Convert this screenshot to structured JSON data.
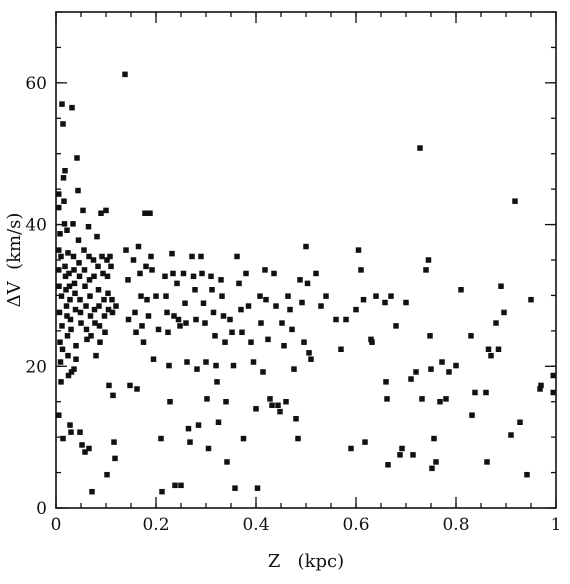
{
  "chart_data": {
    "type": "scatter",
    "title": "",
    "xlabel": "Z   (kpc)",
    "ylabel": "ΔV  (km/s)",
    "xlim": [
      0,
      1.0
    ],
    "ylim": [
      0,
      70
    ],
    "x_ticks": [
      {
        "value": 0,
        "label": "0"
      },
      {
        "value": 0.2,
        "label": "0.2"
      },
      {
        "value": 0.4,
        "label": "0.4"
      },
      {
        "value": 0.6,
        "label": "0.6"
      },
      {
        "value": 0.8,
        "label": "0.8"
      },
      {
        "value": 1.0,
        "label": "1"
      }
    ],
    "y_ticks": [
      {
        "value": 0,
        "label": "0"
      },
      {
        "value": 20,
        "label": "20"
      },
      {
        "value": 40,
        "label": "40"
      },
      {
        "value": 60,
        "label": "60"
      }
    ],
    "x_minor_step": 0.05,
    "y_minor_step": 5,
    "grid": false,
    "legend": "none",
    "marker": "square",
    "color": "#111111",
    "points": [
      [
        0.002,
        44.3
      ],
      [
        0.004,
        42.4
      ],
      [
        0.004,
        36.4
      ],
      [
        0.005,
        33.6
      ],
      [
        0.006,
        31.3
      ],
      [
        0.007,
        27.6
      ],
      [
        0.008,
        23.4
      ],
      [
        0.009,
        20.6
      ],
      [
        0.01,
        17.8
      ],
      [
        0.005,
        13.1
      ],
      [
        0.008,
        38.7
      ],
      [
        0.01,
        35.5
      ],
      [
        0.011,
        29.9
      ],
      [
        0.012,
        25.7
      ],
      [
        0.013,
        22.4
      ],
      [
        0.014,
        9.8
      ],
      [
        0.012,
        57.0
      ],
      [
        0.014,
        54.2
      ],
      [
        0.015,
        46.6
      ],
      [
        0.016,
        43.3
      ],
      [
        0.017,
        40.1
      ],
      [
        0.018,
        34.1
      ],
      [
        0.019,
        32.7
      ],
      [
        0.02,
        30.8
      ],
      [
        0.021,
        28.5
      ],
      [
        0.022,
        27.1
      ],
      [
        0.023,
        24.3
      ],
      [
        0.024,
        21.5
      ],
      [
        0.025,
        18.7
      ],
      [
        0.018,
        47.6
      ],
      [
        0.022,
        39.2
      ],
      [
        0.024,
        36.0
      ],
      [
        0.026,
        33.1
      ],
      [
        0.027,
        31.3
      ],
      [
        0.028,
        29.4
      ],
      [
        0.029,
        26.6
      ],
      [
        0.03,
        25.2
      ],
      [
        0.031,
        19.2
      ],
      [
        0.028,
        11.7
      ],
      [
        0.03,
        10.7
      ],
      [
        0.032,
        56.5
      ],
      [
        0.034,
        40.1
      ],
      [
        0.035,
        35.5
      ],
      [
        0.036,
        33.6
      ],
      [
        0.037,
        31.7
      ],
      [
        0.038,
        30.3
      ],
      [
        0.039,
        28.0
      ],
      [
        0.04,
        22.9
      ],
      [
        0.04,
        21.0
      ],
      [
        0.036,
        19.6
      ],
      [
        0.042,
        49.4
      ],
      [
        0.044,
        44.8
      ],
      [
        0.045,
        37.8
      ],
      [
        0.046,
        34.6
      ],
      [
        0.047,
        32.7
      ],
      [
        0.048,
        29.4
      ],
      [
        0.049,
        27.6
      ],
      [
        0.05,
        26.1
      ],
      [
        0.048,
        10.7
      ],
      [
        0.052,
        8.9
      ],
      [
        0.054,
        42.0
      ],
      [
        0.056,
        36.4
      ],
      [
        0.057,
        33.6
      ],
      [
        0.058,
        31.3
      ],
      [
        0.06,
        28.5
      ],
      [
        0.061,
        25.2
      ],
      [
        0.062,
        23.8
      ],
      [
        0.058,
        7.9
      ],
      [
        0.065,
        39.7
      ],
      [
        0.066,
        35.5
      ],
      [
        0.067,
        32.2
      ],
      [
        0.068,
        29.9
      ],
      [
        0.069,
        27.1
      ],
      [
        0.07,
        24.3
      ],
      [
        0.066,
        8.4
      ],
      [
        0.072,
        2.3
      ],
      [
        0.075,
        35.0
      ],
      [
        0.076,
        32.7
      ],
      [
        0.077,
        28.0
      ],
      [
        0.078,
        26.1
      ],
      [
        0.08,
        21.5
      ],
      [
        0.082,
        38.3
      ],
      [
        0.084,
        34.1
      ],
      [
        0.085,
        30.8
      ],
      [
        0.086,
        28.5
      ],
      [
        0.087,
        25.7
      ],
      [
        0.088,
        23.4
      ],
      [
        0.09,
        41.6
      ],
      [
        0.092,
        35.5
      ],
      [
        0.094,
        33.1
      ],
      [
        0.096,
        29.4
      ],
      [
        0.097,
        27.1
      ],
      [
        0.098,
        24.8
      ],
      [
        0.1,
        42.0
      ],
      [
        0.102,
        35.0
      ],
      [
        0.103,
        32.7
      ],
      [
        0.104,
        30.3
      ],
      [
        0.105,
        28.0
      ],
      [
        0.106,
        17.3
      ],
      [
        0.102,
        4.7
      ],
      [
        0.108,
        35.5
      ],
      [
        0.11,
        34.1
      ],
      [
        0.112,
        29.4
      ],
      [
        0.113,
        27.6
      ],
      [
        0.114,
        15.9
      ],
      [
        0.116,
        9.3
      ],
      [
        0.118,
        7.0
      ],
      [
        0.12,
        28.5
      ],
      [
        0.138,
        61.2
      ],
      [
        0.14,
        36.4
      ],
      [
        0.144,
        32.2
      ],
      [
        0.145,
        26.6
      ],
      [
        0.148,
        17.3
      ],
      [
        0.155,
        35.0
      ],
      [
        0.158,
        27.6
      ],
      [
        0.16,
        24.8
      ],
      [
        0.162,
        16.8
      ],
      [
        0.165,
        36.9
      ],
      [
        0.168,
        33.1
      ],
      [
        0.17,
        29.9
      ],
      [
        0.172,
        25.7
      ],
      [
        0.175,
        23.4
      ],
      [
        0.178,
        41.6
      ],
      [
        0.18,
        34.1
      ],
      [
        0.182,
        29.4
      ],
      [
        0.185,
        27.1
      ],
      [
        0.188,
        41.6
      ],
      [
        0.19,
        35.5
      ],
      [
        0.192,
        33.6
      ],
      [
        0.195,
        21.0
      ],
      [
        0.2,
        29.9
      ],
      [
        0.205,
        25.2
      ],
      [
        0.21,
        9.8
      ],
      [
        0.212,
        2.3
      ],
      [
        0.218,
        32.7
      ],
      [
        0.22,
        29.9
      ],
      [
        0.222,
        27.6
      ],
      [
        0.224,
        24.8
      ],
      [
        0.226,
        20.1
      ],
      [
        0.228,
        15.0
      ],
      [
        0.232,
        35.9
      ],
      [
        0.234,
        33.1
      ],
      [
        0.236,
        27.1
      ],
      [
        0.238,
        3.2
      ],
      [
        0.242,
        31.7
      ],
      [
        0.245,
        26.6
      ],
      [
        0.248,
        25.7
      ],
      [
        0.25,
        3.2
      ],
      [
        0.255,
        33.1
      ],
      [
        0.258,
        28.9
      ],
      [
        0.26,
        26.1
      ],
      [
        0.262,
        20.6
      ],
      [
        0.265,
        11.2
      ],
      [
        0.268,
        9.3
      ],
      [
        0.272,
        35.5
      ],
      [
        0.275,
        32.7
      ],
      [
        0.278,
        30.8
      ],
      [
        0.28,
        26.6
      ],
      [
        0.282,
        19.6
      ],
      [
        0.285,
        11.7
      ],
      [
        0.29,
        35.5
      ],
      [
        0.292,
        33.1
      ],
      [
        0.295,
        28.9
      ],
      [
        0.298,
        26.1
      ],
      [
        0.3,
        20.6
      ],
      [
        0.302,
        15.4
      ],
      [
        0.305,
        8.4
      ],
      [
        0.31,
        32.7
      ],
      [
        0.312,
        30.8
      ],
      [
        0.315,
        27.6
      ],
      [
        0.318,
        24.3
      ],
      [
        0.32,
        20.1
      ],
      [
        0.322,
        17.8
      ],
      [
        0.325,
        12.1
      ],
      [
        0.33,
        32.2
      ],
      [
        0.332,
        29.9
      ],
      [
        0.335,
        27.1
      ],
      [
        0.338,
        23.4
      ],
      [
        0.34,
        15.0
      ],
      [
        0.342,
        6.5
      ],
      [
        0.348,
        26.6
      ],
      [
        0.352,
        24.8
      ],
      [
        0.355,
        20.1
      ],
      [
        0.358,
        2.8
      ],
      [
        0.362,
        35.5
      ],
      [
        0.366,
        31.7
      ],
      [
        0.37,
        28.0
      ],
      [
        0.372,
        24.8
      ],
      [
        0.375,
        9.8
      ],
      [
        0.38,
        33.1
      ],
      [
        0.385,
        28.5
      ],
      [
        0.39,
        23.4
      ],
      [
        0.395,
        20.6
      ],
      [
        0.4,
        14.0
      ],
      [
        0.403,
        2.8
      ],
      [
        0.408,
        29.9
      ],
      [
        0.41,
        26.1
      ],
      [
        0.414,
        19.2
      ],
      [
        0.418,
        33.6
      ],
      [
        0.42,
        29.4
      ],
      [
        0.424,
        23.8
      ],
      [
        0.428,
        15.4
      ],
      [
        0.432,
        14.5
      ],
      [
        0.436,
        33.1
      ],
      [
        0.44,
        28.5
      ],
      [
        0.444,
        14.5
      ],
      [
        0.448,
        13.6
      ],
      [
        0.452,
        26.1
      ],
      [
        0.456,
        22.9
      ],
      [
        0.46,
        15.0
      ],
      [
        0.464,
        29.9
      ],
      [
        0.468,
        28.0
      ],
      [
        0.472,
        25.2
      ],
      [
        0.476,
        19.6
      ],
      [
        0.48,
        12.6
      ],
      [
        0.484,
        9.8
      ],
      [
        0.488,
        32.2
      ],
      [
        0.492,
        29.0
      ],
      [
        0.496,
        23.4
      ],
      [
        0.5,
        36.9
      ],
      [
        0.503,
        31.7
      ],
      [
        0.506,
        21.9
      ],
      [
        0.51,
        21.0
      ],
      [
        0.52,
        33.1
      ],
      [
        0.53,
        28.5
      ],
      [
        0.54,
        29.9
      ],
      [
        0.56,
        26.6
      ],
      [
        0.57,
        22.4
      ],
      [
        0.58,
        26.6
      ],
      [
        0.59,
        8.4
      ],
      [
        0.6,
        28.0
      ],
      [
        0.605,
        36.4
      ],
      [
        0.61,
        33.6
      ],
      [
        0.615,
        29.4
      ],
      [
        0.618,
        9.3
      ],
      [
        0.63,
        23.8
      ],
      [
        0.632,
        23.4
      ],
      [
        0.64,
        29.9
      ],
      [
        0.658,
        29.0
      ],
      [
        0.66,
        17.8
      ],
      [
        0.662,
        15.4
      ],
      [
        0.664,
        6.1
      ],
      [
        0.67,
        29.9
      ],
      [
        0.68,
        25.7
      ],
      [
        0.688,
        7.5
      ],
      [
        0.692,
        8.4
      ],
      [
        0.7,
        29.0
      ],
      [
        0.71,
        18.2
      ],
      [
        0.714,
        7.5
      ],
      [
        0.72,
        19.2
      ],
      [
        0.728,
        50.8
      ],
      [
        0.732,
        15.4
      ],
      [
        0.74,
        33.6
      ],
      [
        0.745,
        35.0
      ],
      [
        0.748,
        24.3
      ],
      [
        0.75,
        19.6
      ],
      [
        0.752,
        5.6
      ],
      [
        0.756,
        9.8
      ],
      [
        0.76,
        6.5
      ],
      [
        0.768,
        15.0
      ],
      [
        0.772,
        20.6
      ],
      [
        0.78,
        15.4
      ],
      [
        0.786,
        19.2
      ],
      [
        0.8,
        20.1
      ],
      [
        0.81,
        30.8
      ],
      [
        0.83,
        24.3
      ],
      [
        0.832,
        13.1
      ],
      [
        0.838,
        16.3
      ],
      [
        0.86,
        16.3
      ],
      [
        0.862,
        6.5
      ],
      [
        0.865,
        22.4
      ],
      [
        0.87,
        21.5
      ],
      [
        0.88,
        26.1
      ],
      [
        0.885,
        22.4
      ],
      [
        0.89,
        31.3
      ],
      [
        0.896,
        27.6
      ],
      [
        0.91,
        10.3
      ],
      [
        0.918,
        43.3
      ],
      [
        0.928,
        12.1
      ],
      [
        0.942,
        4.7
      ],
      [
        0.95,
        29.4
      ],
      [
        0.968,
        16.8
      ],
      [
        0.97,
        17.3
      ],
      [
        0.996,
        16.3
      ],
      [
        0.998,
        18.7
      ]
    ]
  }
}
